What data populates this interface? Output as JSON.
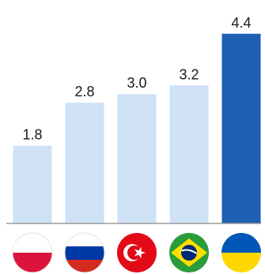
{
  "chart_data": {
    "type": "bar",
    "categories": [
      "Poland",
      "Russia",
      "Turkey",
      "Brazil",
      "Ukraine"
    ],
    "values": [
      1.8,
      2.8,
      3.0,
      3.2,
      4.4
    ],
    "value_labels": [
      "1.8",
      "2.8",
      "3.0",
      "3.2",
      "4.4"
    ],
    "category_icons": [
      "poland-flag-icon",
      "russia-flag-icon",
      "turkey-flag-icon",
      "brazil-flag-icon",
      "ukraine-flag-icon"
    ],
    "title": "",
    "xlabel": "",
    "ylabel": "",
    "ylim": [
      0,
      5.0
    ],
    "grid": false,
    "legend": "none",
    "colors": {
      "default_bar": "#cfe1f5",
      "highlight_bar": "#1f5fb4",
      "axis": "#9a9a9a"
    },
    "highlight_index": 4
  }
}
